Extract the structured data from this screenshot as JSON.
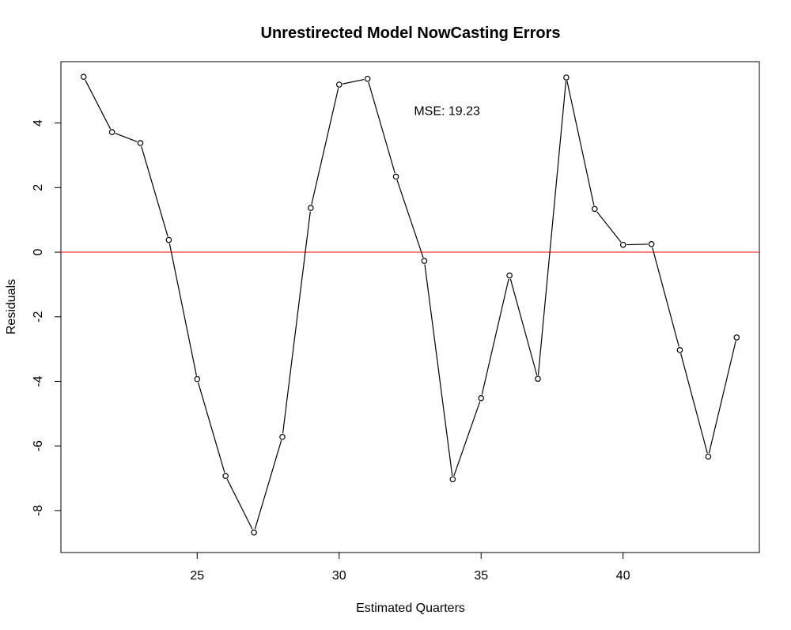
{
  "chart_data": {
    "type": "line",
    "title": "Unrestirected Model NowCasting Errors",
    "xlabel": "Estimated Quarters",
    "ylabel": "Residuals",
    "xlim": [
      20.2,
      44.8
    ],
    "ylim": [
      -9.3,
      5.9
    ],
    "x_ticks": [
      25,
      30,
      35,
      40
    ],
    "y_ticks": [
      4,
      2,
      0,
      -2,
      -4,
      -6,
      -8
    ],
    "annotation": "MSE: 19.23",
    "annotation_pos": [
      33.8,
      4.4
    ],
    "reference_line": {
      "y": 0,
      "color": "#ff0000"
    },
    "series_color": "#000000",
    "grid": false,
    "legend": "none",
    "x": [
      21,
      22,
      23,
      24,
      25,
      26,
      27,
      28,
      29,
      30,
      31,
      32,
      33,
      34,
      35,
      36,
      37,
      38,
      39,
      40,
      41,
      42,
      43,
      44
    ],
    "values": [
      5.43,
      3.72,
      3.38,
      0.38,
      -3.93,
      -6.93,
      -8.68,
      -5.72,
      1.37,
      5.19,
      5.37,
      2.34,
      -0.27,
      -7.03,
      -4.52,
      -0.72,
      -3.92,
      5.41,
      1.34,
      0.23,
      0.25,
      -3.03,
      -6.33,
      -2.64
    ]
  }
}
